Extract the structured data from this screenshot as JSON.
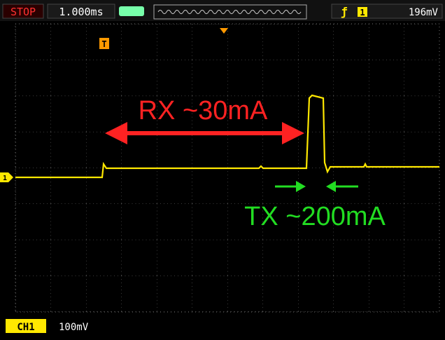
{
  "status_bar": {
    "mode": "STOP",
    "timebase": "1.000ms",
    "trigger_channel": "1",
    "trigger_level": "196mV"
  },
  "markers": {
    "trigger": "T",
    "channel": "1"
  },
  "annotations": {
    "rx": "RX ~30mA",
    "tx": "TX ~200mA"
  },
  "footer": {
    "channel": "CH1",
    "scale": "100mV"
  }
}
